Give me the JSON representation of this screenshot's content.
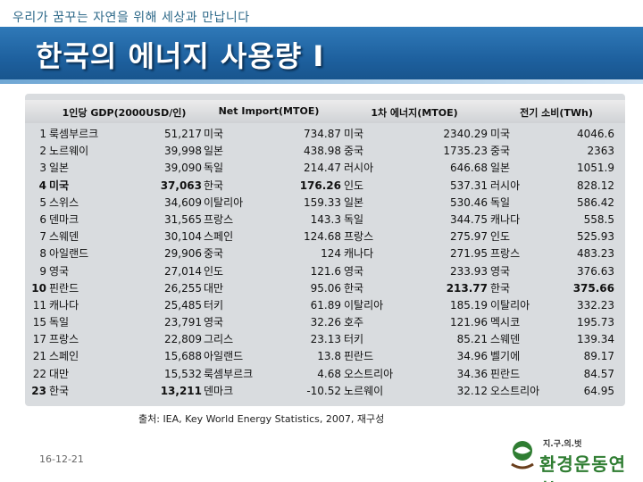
{
  "slide": {
    "tagline": "우리가 꿈꾸는 자연을 위해 세상과 만납니다",
    "title": "한국의 에너지 사용량 I",
    "source": "출처: IEA, Key World Energy Statistics, 2007, 재구성",
    "date": "16-12-21"
  },
  "logo": {
    "small_text": "지.구.의.벗",
    "main_text": "환경운동연합"
  },
  "table": {
    "headers": [
      "1인당 GDP(2000USD/인)",
      "Net Import(MTOE)",
      "1차 에너지(MTOE)",
      "전기 소비(TWh)"
    ],
    "rows": [
      {
        "rank": "1",
        "gdp_country": "룩셈부르크",
        "gdp": "51,217",
        "imp_country": "미국",
        "imp": "734.87",
        "prim_country": "미국",
        "prim": "2340.29",
        "elec_country": "미국",
        "elec": "4046.6"
      },
      {
        "rank": "2",
        "gdp_country": "노르웨이",
        "gdp": "39,998",
        "imp_country": "일본",
        "imp": "438.98",
        "prim_country": "중국",
        "prim": "1735.23",
        "elec_country": "중국",
        "elec": "2363"
      },
      {
        "rank": "3",
        "gdp_country": "일본",
        "gdp": "39,090",
        "imp_country": "독일",
        "imp": "214.47",
        "prim_country": "러시아",
        "prim": "646.68",
        "elec_country": "일본",
        "elec": "1051.9"
      },
      {
        "rank": "4",
        "gdp_country": "미국",
        "gdp": "37,063",
        "imp_country": "한국",
        "imp": "176.26",
        "prim_country": "인도",
        "prim": "537.31",
        "elec_country": "러시아",
        "elec": "828.12"
      },
      {
        "rank": "5",
        "gdp_country": "스위스",
        "gdp": "34,609",
        "imp_country": "이탈리아",
        "imp": "159.33",
        "prim_country": "일본",
        "prim": "530.46",
        "elec_country": "독일",
        "elec": "586.42"
      },
      {
        "rank": "6",
        "gdp_country": "덴마크",
        "gdp": "31,565",
        "imp_country": "프랑스",
        "imp": "143.3",
        "prim_country": "독일",
        "prim": "344.75",
        "elec_country": "캐나다",
        "elec": "558.5"
      },
      {
        "rank": "7",
        "gdp_country": "스웨덴",
        "gdp": "30,104",
        "imp_country": "스페인",
        "imp": "124.68",
        "prim_country": "프랑스",
        "prim": "275.97",
        "elec_country": "인도",
        "elec": "525.93"
      },
      {
        "rank": "8",
        "gdp_country": "아일랜드",
        "gdp": "29,906",
        "imp_country": "중국",
        "imp": "124",
        "prim_country": "캐나다",
        "prim": "271.95",
        "elec_country": "프랑스",
        "elec": "483.23"
      },
      {
        "rank": "9",
        "gdp_country": "영국",
        "gdp": "27,014",
        "imp_country": "인도",
        "imp": "121.6",
        "prim_country": "영국",
        "prim": "233.93",
        "elec_country": "영국",
        "elec": "376.63"
      },
      {
        "rank": "10",
        "gdp_country": "핀란드",
        "gdp": "26,255",
        "imp_country": "대만",
        "imp": "95.06",
        "prim_country": "한국",
        "prim": "213.77",
        "elec_country": "한국",
        "elec": "375.66"
      },
      {
        "rank": "11",
        "gdp_country": "캐나다",
        "gdp": "25,485",
        "imp_country": "터키",
        "imp": "61.89",
        "prim_country": "이탈리아",
        "prim": "185.19",
        "elec_country": "이탈리아",
        "elec": "332.23"
      },
      {
        "rank": "15",
        "gdp_country": "독일",
        "gdp": "23,791",
        "imp_country": "영국",
        "imp": "32.26",
        "prim_country": "호주",
        "prim": "121.96",
        "elec_country": "멕시코",
        "elec": "195.73"
      },
      {
        "rank": "17",
        "gdp_country": "프랑스",
        "gdp": "22,809",
        "imp_country": "그리스",
        "imp": "23.13",
        "prim_country": "터키",
        "prim": "85.21",
        "elec_country": "스웨덴",
        "elec": "139.34"
      },
      {
        "rank": "21",
        "gdp_country": "스페인",
        "gdp": "15,688",
        "imp_country": "아일랜드",
        "imp": "13.8",
        "prim_country": "핀란드",
        "prim": "34.96",
        "elec_country": "벨기에",
        "elec": "89.17"
      },
      {
        "rank": "22",
        "gdp_country": "대만",
        "gdp": "15,532",
        "imp_country": "룩셈부르크",
        "imp": "4.68",
        "prim_country": "오스트리아",
        "prim": "34.36",
        "elec_country": "핀란드",
        "elec": "84.57"
      },
      {
        "rank": "23",
        "gdp_country": "한국",
        "gdp": "13,211",
        "imp_country": "덴마크",
        "imp": "-10.52",
        "prim_country": "노르웨이",
        "prim": "32.12",
        "elec_country": "오스트리아",
        "elec": "64.95"
      }
    ]
  },
  "colors": {
    "title_bar": "#1d5f9d",
    "logo_green": "#2f7d32"
  }
}
